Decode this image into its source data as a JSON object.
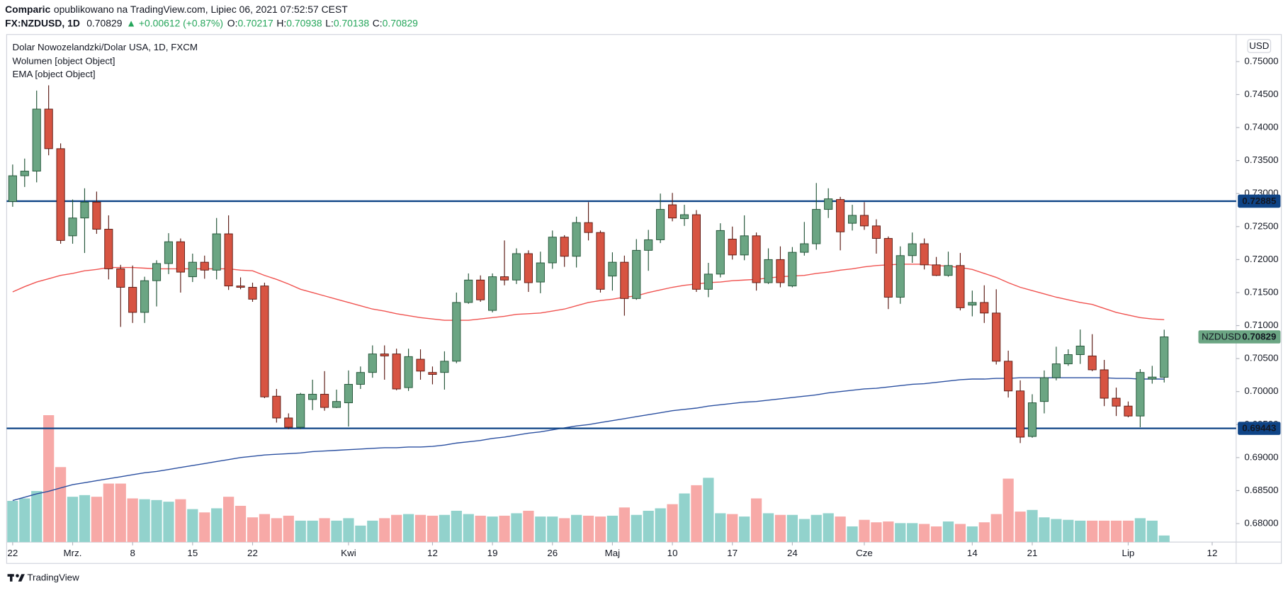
{
  "header": {
    "author": "Comparic",
    "published": "opublikowano na TradingView.com, Lipiec 06, 2021 07:52:57 CEST",
    "symbol": "FX:NZDUSD, 1D",
    "last": "0.70829",
    "change": "▲ +0.00612 (+0.87%)",
    "ohlc": [
      {
        "label": "O:",
        "value": "0.70217"
      },
      {
        "label": "H:",
        "value": "0.70938"
      },
      {
        "label": "L:",
        "value": "0.70138"
      },
      {
        "label": "C:",
        "value": "0.70829"
      }
    ]
  },
  "footer": {
    "brand": "TradingView"
  },
  "chart_data": {
    "type": "candlestick",
    "title": "Dolar Nowozelandzki/Dolar USA, 1D, FXCM",
    "currency": "USD",
    "indicators": [
      "Wolumen [object Object]",
      "EMA [object Object]"
    ],
    "up_color": "#6ba583",
    "down_color": "#d75442",
    "open": [
      0.7288,
      0.7327,
      0.7334,
      0.7428,
      0.7368,
      0.7236,
      0.7263,
      0.7287,
      0.7246,
      0.7186,
      0.7158,
      0.712,
      0.7168,
      0.7194,
      0.7227,
      0.7174,
      0.7196,
      0.7184,
      0.7239,
      0.716,
      0.7158,
      0.716,
      0.6993,
      0.696,
      0.6946,
      0.6988,
      0.6996,
      0.6976,
      0.6983,
      0.7011,
      0.7029,
      0.7057,
      0.7057,
      0.7006,
      0.7049,
      0.7029,
      0.7029,
      0.7046,
      0.7135,
      0.7169,
      0.7123,
      0.7174,
      0.7169,
      0.7209,
      0.7166,
      0.7195,
      0.7234,
      0.7205,
      0.7256,
      0.7241,
      0.7175,
      0.7196,
      0.7141,
      0.7214,
      0.723,
      0.7283,
      0.7262,
      0.7268,
      0.7155,
      0.7178,
      0.7231,
      0.7207,
      0.7236,
      0.7165,
      0.72,
      0.716,
      0.7211,
      0.7224,
      0.7276,
      0.7291,
      0.7255,
      0.7267,
      0.7251,
      0.7232,
      0.7143,
      0.7206,
      0.7224,
      0.7192,
      0.7176,
      0.7191,
      0.7131,
      0.7135,
      0.7119,
      0.7046,
      0.7001,
      0.6932,
      0.6985,
      0.7021,
      0.7042,
      0.7056,
      0.7054,
      0.7033,
      0.699,
      0.6978,
      0.6963,
      0.7019,
      0.70217
    ],
    "high": [
      0.7344,
      0.7353,
      0.7456,
      0.7464,
      0.7376,
      0.7291,
      0.7308,
      0.7303,
      0.7267,
      0.7192,
      0.7191,
      0.7174,
      0.7199,
      0.724,
      0.7232,
      0.7209,
      0.7206,
      0.7263,
      0.7267,
      0.7173,
      0.7165,
      0.7165,
      0.7004,
      0.6967,
      0.6998,
      0.7018,
      0.7031,
      0.7003,
      0.7032,
      0.7038,
      0.707,
      0.707,
      0.7065,
      0.7065,
      0.7064,
      0.7038,
      0.7061,
      0.715,
      0.7179,
      0.7176,
      0.7179,
      0.7229,
      0.7217,
      0.7214,
      0.7212,
      0.7244,
      0.7237,
      0.7265,
      0.7287,
      0.7244,
      0.7211,
      0.7206,
      0.7231,
      0.7245,
      0.73,
      0.7301,
      0.7283,
      0.7275,
      0.7195,
      0.7255,
      0.725,
      0.7267,
      0.7241,
      0.7217,
      0.722,
      0.7219,
      0.7257,
      0.7316,
      0.7308,
      0.7295,
      0.7283,
      0.7287,
      0.7261,
      0.7235,
      0.722,
      0.7241,
      0.7232,
      0.7204,
      0.7212,
      0.721,
      0.7153,
      0.7161,
      0.7155,
      0.7062,
      0.7017,
      0.6996,
      0.7032,
      0.7068,
      0.7064,
      0.7094,
      0.7087,
      0.7048,
      0.7006,
      0.6985,
      0.7034,
      0.7039,
      0.70938
    ],
    "low": [
      0.728,
      0.731,
      0.7317,
      0.7358,
      0.7224,
      0.7224,
      0.721,
      0.7239,
      0.717,
      0.7098,
      0.7104,
      0.7104,
      0.7129,
      0.7178,
      0.715,
      0.7166,
      0.7171,
      0.717,
      0.7154,
      0.7155,
      0.7136,
      0.699,
      0.6953,
      0.6943,
      0.6943,
      0.6972,
      0.6971,
      0.6975,
      0.6947,
      0.7004,
      0.7021,
      0.7018,
      0.7002,
      0.7001,
      0.7018,
      0.7011,
      0.7003,
      0.7043,
      0.7133,
      0.7136,
      0.712,
      0.7161,
      0.7163,
      0.7151,
      0.7149,
      0.7186,
      0.7189,
      0.7188,
      0.7229,
      0.715,
      0.7153,
      0.7115,
      0.7139,
      0.7183,
      0.7225,
      0.7258,
      0.7251,
      0.7151,
      0.7143,
      0.7173,
      0.72,
      0.7199,
      0.7153,
      0.7163,
      0.7158,
      0.7158,
      0.7206,
      0.7215,
      0.7263,
      0.7214,
      0.7244,
      0.7245,
      0.7209,
      0.7125,
      0.7133,
      0.7195,
      0.7185,
      0.7175,
      0.7174,
      0.7123,
      0.7114,
      0.7104,
      0.7041,
      0.6991,
      0.6922,
      0.693,
      0.6967,
      0.7017,
      0.7039,
      0.7042,
      0.7031,
      0.6978,
      0.6963,
      0.6961,
      0.6946,
      0.7012,
      0.70138
    ],
    "close": [
      0.7327,
      0.7334,
      0.7428,
      0.7368,
      0.7229,
      0.7263,
      0.7287,
      0.7246,
      0.7186,
      0.7158,
      0.712,
      0.7168,
      0.7194,
      0.7227,
      0.7181,
      0.7196,
      0.7184,
      0.7239,
      0.716,
      0.7158,
      0.714,
      0.6992,
      0.696,
      0.6946,
      0.6996,
      0.6996,
      0.6976,
      0.6985,
      0.7011,
      0.7029,
      0.7057,
      0.7054,
      0.7004,
      0.7053,
      0.7031,
      0.7026,
      0.7046,
      0.7135,
      0.7169,
      0.7139,
      0.7174,
      0.7169,
      0.7209,
      0.7165,
      0.7195,
      0.7234,
      0.7205,
      0.7256,
      0.7241,
      0.7155,
      0.7196,
      0.7141,
      0.7214,
      0.723,
      0.7276,
      0.7263,
      0.7268,
      0.7155,
      0.7178,
      0.7244,
      0.7207,
      0.7236,
      0.7165,
      0.72,
      0.7165,
      0.7211,
      0.7224,
      0.7276,
      0.7292,
      0.7242,
      0.7267,
      0.7251,
      0.7232,
      0.7143,
      0.7206,
      0.7224,
      0.7192,
      0.7176,
      0.7191,
      0.7127,
      0.7135,
      0.7119,
      0.7046,
      0.7001,
      0.6931,
      0.6983,
      0.7021,
      0.7042,
      0.7056,
      0.7069,
      0.7033,
      0.699,
      0.6978,
      0.6963,
      0.7029,
      0.7022,
      0.70829
    ],
    "volume": {
      "up_color": "#92d2cc",
      "down_color": "#f7a9a7",
      "values": [
        50,
        53,
        62,
        154,
        91,
        55,
        57,
        55,
        71,
        71,
        53,
        52,
        51,
        49,
        52,
        40,
        36,
        41,
        55,
        44,
        30,
        34,
        29,
        32,
        26,
        26,
        29,
        26,
        29,
        20,
        26,
        29,
        33,
        34,
        33,
        32,
        33,
        38,
        34,
        32,
        31,
        32,
        35,
        38,
        31,
        31,
        29,
        33,
        32,
        31,
        32,
        42,
        33,
        38,
        41,
        46,
        59,
        69,
        78,
        35,
        34,
        31,
        53,
        35,
        33,
        33,
        28,
        33,
        35,
        31,
        19,
        27,
        24,
        25,
        23,
        23,
        22,
        19,
        25,
        22,
        19,
        24,
        34,
        77,
        37,
        39,
        30,
        28,
        27,
        26,
        26,
        26,
        26,
        26,
        29,
        26,
        8
      ]
    },
    "ema": [
      {
        "color": "#f05350",
        "values": [
          0.7151,
          0.7159,
          0.7166,
          0.7171,
          0.7176,
          0.7179,
          0.7183,
          0.7185,
          0.7188,
          0.7188,
          0.7188,
          0.7187,
          0.7186,
          0.7186,
          0.7186,
          0.7186,
          0.7186,
          0.7186,
          0.7186,
          0.7184,
          0.7183,
          0.7176,
          0.717,
          0.7163,
          0.7155,
          0.715,
          0.7145,
          0.714,
          0.7135,
          0.713,
          0.7125,
          0.7122,
          0.7118,
          0.7115,
          0.7112,
          0.711,
          0.7108,
          0.7108,
          0.7108,
          0.711,
          0.7112,
          0.7114,
          0.7117,
          0.7118,
          0.7119,
          0.7122,
          0.7125,
          0.713,
          0.7135,
          0.7138,
          0.714,
          0.7143,
          0.7145,
          0.715,
          0.7154,
          0.7158,
          0.7161,
          0.7163,
          0.7165,
          0.7166,
          0.7168,
          0.7169,
          0.717,
          0.7172,
          0.7174,
          0.7175,
          0.7176,
          0.7179,
          0.7181,
          0.7184,
          0.7186,
          0.7189,
          0.7191,
          0.7192,
          0.7193,
          0.7193,
          0.7193,
          0.7191,
          0.719,
          0.7188,
          0.7185,
          0.7179,
          0.7173,
          0.7165,
          0.7158,
          0.7153,
          0.7148,
          0.7143,
          0.7139,
          0.7135,
          0.7132,
          0.7126,
          0.712,
          0.7116,
          0.7112,
          0.711,
          0.7109
        ]
      },
      {
        "color": "#2a4fa0",
        "values": [
          0.6835,
          0.684,
          0.6845,
          0.6849,
          0.6854,
          0.6859,
          0.6862,
          0.6865,
          0.6868,
          0.6871,
          0.6874,
          0.6877,
          0.6879,
          0.6882,
          0.6885,
          0.6888,
          0.6891,
          0.6894,
          0.6897,
          0.69,
          0.6902,
          0.6904,
          0.6905,
          0.6906,
          0.6907,
          0.6909,
          0.691,
          0.6911,
          0.6912,
          0.6913,
          0.6914,
          0.6915,
          0.6915,
          0.6916,
          0.6916,
          0.6917,
          0.6919,
          0.6922,
          0.6924,
          0.6926,
          0.6929,
          0.6931,
          0.6934,
          0.6937,
          0.6939,
          0.6942,
          0.6945,
          0.6948,
          0.695,
          0.6953,
          0.6956,
          0.6959,
          0.6962,
          0.6965,
          0.6968,
          0.6971,
          0.6973,
          0.6975,
          0.6978,
          0.698,
          0.6982,
          0.6984,
          0.6985,
          0.6987,
          0.6989,
          0.6991,
          0.6993,
          0.6995,
          0.6998,
          0.7,
          0.7002,
          0.7004,
          0.7005,
          0.7007,
          0.7009,
          0.7011,
          0.7012,
          0.7014,
          0.7016,
          0.7018,
          0.7019,
          0.7019,
          0.702,
          0.702,
          0.7021,
          0.7021,
          0.7021,
          0.7021,
          0.7021,
          0.7021,
          0.7021,
          0.7021,
          0.702,
          0.702,
          0.7019,
          0.7019,
          0.7019
        ]
      }
    ],
    "levels": [
      {
        "value": 0.72885,
        "label": "0.72885"
      },
      {
        "value": 0.69443,
        "label": "0.69443"
      }
    ],
    "level_color": "#0f4486",
    "last": {
      "name": "NZDUSD",
      "value": 0.70829,
      "label": "0.70829"
    },
    "xlim": [
      -0.5,
      102
    ],
    "xticks": [
      {
        "value": 0,
        "label": "22"
      },
      {
        "value": 5,
        "label": "Mrz."
      },
      {
        "value": 10,
        "label": "8"
      },
      {
        "value": 15,
        "label": "15"
      },
      {
        "value": 20,
        "label": "22"
      },
      {
        "value": 28,
        "label": "Kwi"
      },
      {
        "value": 35,
        "label": "12"
      },
      {
        "value": 40,
        "label": "19"
      },
      {
        "value": 45,
        "label": "26"
      },
      {
        "value": 50,
        "label": "Maj"
      },
      {
        "value": 55,
        "label": "10"
      },
      {
        "value": 60,
        "label": "17"
      },
      {
        "value": 65,
        "label": "24"
      },
      {
        "value": 71,
        "label": "Cze"
      },
      {
        "value": 80,
        "label": "14"
      },
      {
        "value": 85,
        "label": "21"
      },
      {
        "value": 93,
        "label": "Lip"
      },
      {
        "value": 100,
        "label": "12"
      }
    ],
    "ylim": [
      0.6772,
      0.7541
    ],
    "yticks": [
      {
        "value": 0.68,
        "label": "0.68000"
      },
      {
        "value": 0.685,
        "label": "0.68500"
      },
      {
        "value": 0.69,
        "label": "0.69000"
      },
      {
        "value": 0.695,
        "label": "0.69500"
      },
      {
        "value": 0.7,
        "label": "0.70000"
      },
      {
        "value": 0.705,
        "label": "0.70500"
      },
      {
        "value": 0.71,
        "label": "0.71000"
      },
      {
        "value": 0.715,
        "label": "0.71500"
      },
      {
        "value": 0.72,
        "label": "0.72000"
      },
      {
        "value": 0.725,
        "label": "0.72500"
      },
      {
        "value": 0.73,
        "label": "0.73000"
      },
      {
        "value": 0.735,
        "label": "0.73500"
      },
      {
        "value": 0.74,
        "label": "0.74000"
      },
      {
        "value": 0.745,
        "label": "0.74500"
      },
      {
        "value": 0.75,
        "label": "0.75000"
      }
    ]
  }
}
